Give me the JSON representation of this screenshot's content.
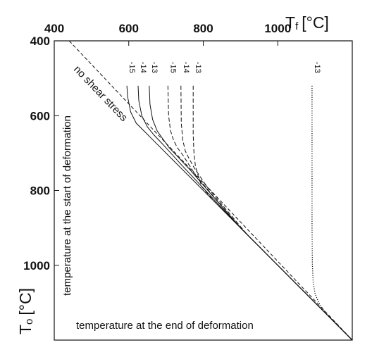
{
  "chart_data": {
    "type": "line",
    "x_axis": {
      "symbol": "T",
      "subscript": "f",
      "unit": "[°C]",
      "position": "top",
      "range": [
        400,
        1200
      ],
      "ticks": [
        400,
        600,
        800,
        1000
      ],
      "annotation": "temperature at the end of  deformation"
    },
    "y_axis": {
      "symbol": "T",
      "subscript": "o",
      "unit": "[°C]",
      "position": "left",
      "inverted": true,
      "range": [
        400,
        1200
      ],
      "ticks": [
        400,
        600,
        800,
        1000
      ],
      "annotation": "temperature at the start of deformation"
    },
    "grid": false,
    "reference_line": {
      "label": "no shear stress",
      "style": "dashed",
      "points": [
        [
          440,
          400
        ],
        [
          1200,
          1200
        ]
      ]
    },
    "series": [
      {
        "label": "-15",
        "style": "solid",
        "x": [
          595,
          597,
          605,
          620,
          640,
          665,
          720,
          900,
          1200
        ],
        "y": [
          520,
          550,
          590,
          620,
          640,
          665,
          720,
          900,
          1200
        ]
      },
      {
        "label": "-14",
        "style": "solid",
        "x": [
          625,
          627,
          635,
          650,
          668,
          690,
          740,
          900,
          1200
        ],
        "y": [
          520,
          560,
          600,
          630,
          652,
          675,
          730,
          900,
          1200
        ]
      },
      {
        "label": "-13",
        "style": "solid",
        "x": [
          655,
          657,
          664,
          676,
          690,
          708,
          760,
          900,
          1200
        ],
        "y": [
          520,
          570,
          610,
          640,
          660,
          685,
          740,
          900,
          1200
        ]
      },
      {
        "label": "-15",
        "style": "dashed",
        "x": [
          705,
          707,
          712,
          720,
          730,
          745,
          780,
          900,
          1200
        ],
        "y": [
          520,
          600,
          640,
          665,
          685,
          705,
          760,
          900,
          1200
        ]
      },
      {
        "label": "-14",
        "style": "dashed",
        "x": [
          740,
          741,
          745,
          752,
          762,
          776,
          810,
          920,
          1200
        ],
        "y": [
          520,
          620,
          665,
          695,
          715,
          740,
          790,
          920,
          1200
        ]
      },
      {
        "label": "-13",
        "style": "dashed",
        "x": [
          773,
          773,
          775,
          779,
          786,
          796,
          830,
          940,
          1200
        ],
        "y": [
          520,
          650,
          700,
          735,
          760,
          790,
          830,
          940,
          1200
        ]
      },
      {
        "label": "-13",
        "style": "dotted",
        "x": [
          1092,
          1092,
          1093,
          1095,
          1100,
          1110,
          1130,
          1160,
          1200
        ],
        "y": [
          520,
          900,
          1000,
          1045,
          1075,
          1100,
          1130,
          1160,
          1200
        ]
      }
    ]
  }
}
